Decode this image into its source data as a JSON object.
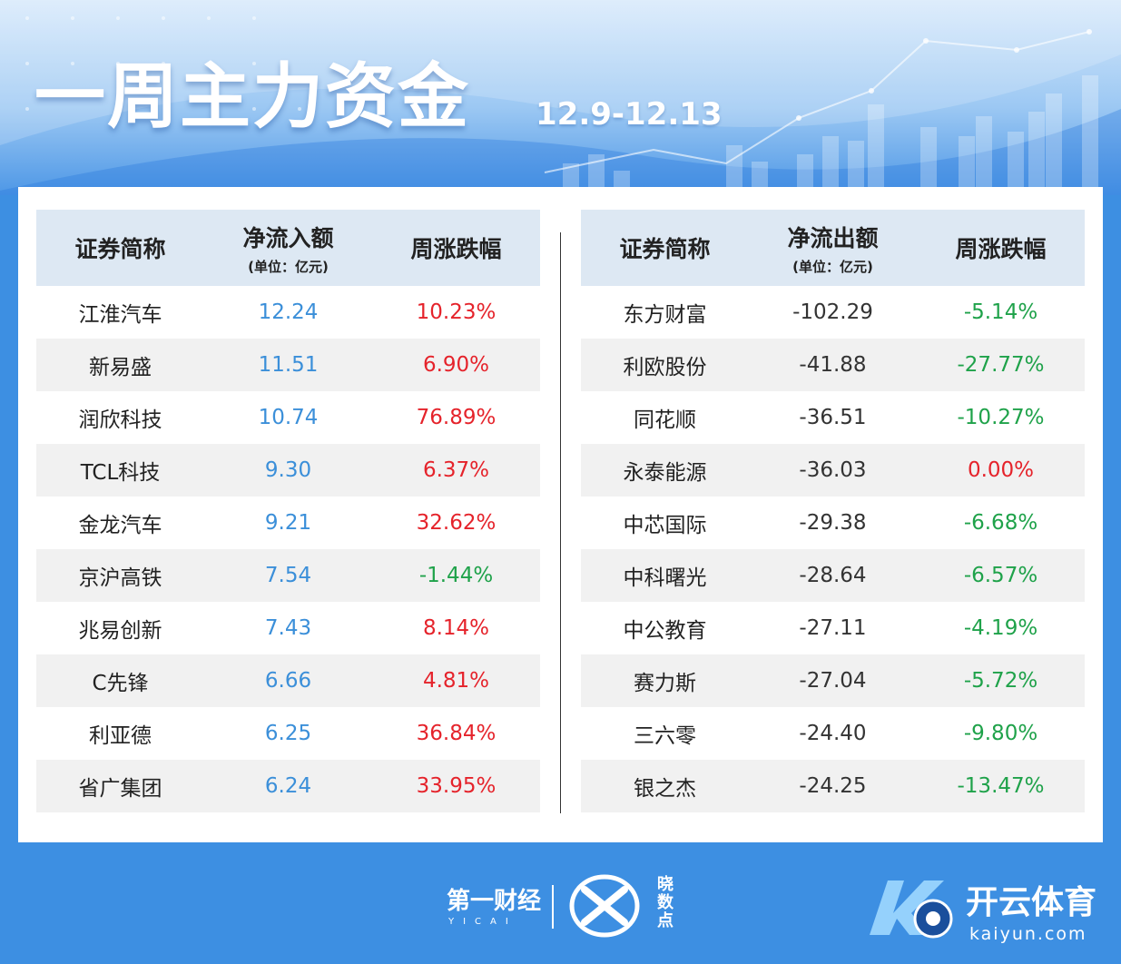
{
  "header": {
    "title": "一周主力资金",
    "date_range": "12.9-12.13"
  },
  "inflow": {
    "columns": {
      "name": "证券简称",
      "amount": "净流入额",
      "amount_unit": "(单位：亿元)",
      "change": "周涨跌幅"
    },
    "rows": [
      {
        "name": "江淮汽车",
        "amount": "12.24",
        "change": "10.23%"
      },
      {
        "name": "新易盛",
        "amount": "11.51",
        "change": "6.90%"
      },
      {
        "name": "润欣科技",
        "amount": "10.74",
        "change": "76.89%"
      },
      {
        "name": "TCL科技",
        "amount": "9.30",
        "change": "6.37%"
      },
      {
        "name": "金龙汽车",
        "amount": "9.21",
        "change": "32.62%"
      },
      {
        "name": "京沪高铁",
        "amount": "7.54",
        "change": "-1.44%"
      },
      {
        "name": "兆易创新",
        "amount": "7.43",
        "change": "8.14%"
      },
      {
        "name": "C先锋",
        "amount": "6.66",
        "change": "4.81%"
      },
      {
        "name": "利亚德",
        "amount": "6.25",
        "change": "36.84%"
      },
      {
        "name": "省广集团",
        "amount": "6.24",
        "change": "33.95%"
      }
    ]
  },
  "outflow": {
    "columns": {
      "name": "证券简称",
      "amount": "净流出额",
      "amount_unit": "(单位：亿元)",
      "change": "周涨跌幅"
    },
    "rows": [
      {
        "name": "东方财富",
        "amount": "-102.29",
        "change": "-5.14%"
      },
      {
        "name": "利欧股份",
        "amount": "-41.88",
        "change": "-27.77%"
      },
      {
        "name": "同花顺",
        "amount": "-36.51",
        "change": "-10.27%"
      },
      {
        "name": "永泰能源",
        "amount": "-36.03",
        "change": "0.00%"
      },
      {
        "name": "中芯国际",
        "amount": "-29.38",
        "change": "-6.68%"
      },
      {
        "name": "中科曙光",
        "amount": "-28.64",
        "change": "-6.57%"
      },
      {
        "name": "中公教育",
        "amount": "-27.11",
        "change": "-4.19%"
      },
      {
        "name": "赛力斯",
        "amount": "-27.04",
        "change": "-5.72%"
      },
      {
        "name": "三六零",
        "amount": "-24.40",
        "change": "-9.80%"
      },
      {
        "name": "银之杰",
        "amount": "-24.25",
        "change": "-13.47%"
      }
    ]
  },
  "footer": {
    "yicai_logo": "第一财经",
    "yicai_sub": "YICAI",
    "xs_logo_text": "晓数点",
    "kaiyun_name": "开云体育",
    "kaiyun_url": "kaiyun.com"
  },
  "colors": {
    "up": "#e5232b",
    "down": "#1fa24a",
    "inflow_amount": "#3b8fd9",
    "header_bg": "#dde8f3"
  }
}
